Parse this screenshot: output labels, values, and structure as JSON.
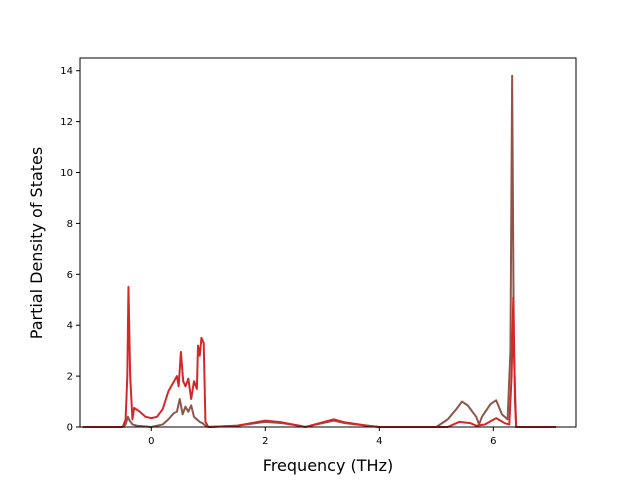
{
  "chart_data": {
    "type": "line",
    "title": "",
    "xlabel": "Frequency (THz)",
    "ylabel": "Partial Density of States",
    "xlim": [
      -1.25,
      7.45
    ],
    "ylim": [
      0,
      14.5
    ],
    "xticks": [
      0,
      2,
      4,
      6
    ],
    "yticks": [
      0,
      2,
      4,
      6,
      8,
      10,
      12,
      14
    ],
    "grid": false,
    "legend": "none",
    "series": [
      {
        "color": "#8c564b",
        "points": [
          [
            -1.2,
            0
          ],
          [
            -0.5,
            0
          ],
          [
            -0.45,
            0.1
          ],
          [
            -0.41,
            0.4
          ],
          [
            -0.38,
            0.25
          ],
          [
            -0.33,
            0.1
          ],
          [
            -0.25,
            0.05
          ],
          [
            0,
            0
          ],
          [
            0.2,
            0.1
          ],
          [
            0.3,
            0.3
          ],
          [
            0.4,
            0.55
          ],
          [
            0.45,
            0.6
          ],
          [
            0.5,
            1.1
          ],
          [
            0.55,
            0.5
          ],
          [
            0.6,
            0.8
          ],
          [
            0.65,
            0.6
          ],
          [
            0.7,
            0.85
          ],
          [
            0.75,
            0.4
          ],
          [
            0.8,
            0.3
          ],
          [
            0.85,
            0.2
          ],
          [
            0.9,
            0.15
          ],
          [
            0.95,
            0.05
          ],
          [
            1.0,
            0
          ],
          [
            1.5,
            0.05
          ],
          [
            2.0,
            0.2
          ],
          [
            2.3,
            0.15
          ],
          [
            2.6,
            0.05
          ],
          [
            2.7,
            0
          ],
          [
            2.9,
            0.1
          ],
          [
            3.2,
            0.25
          ],
          [
            3.4,
            0.15
          ],
          [
            3.8,
            0.05
          ],
          [
            4.0,
            0
          ],
          [
            5.0,
            0
          ],
          [
            5.2,
            0.3
          ],
          [
            5.35,
            0.7
          ],
          [
            5.45,
            1.0
          ],
          [
            5.55,
            0.85
          ],
          [
            5.7,
            0.4
          ],
          [
            5.75,
            0.1
          ],
          [
            5.8,
            0.4
          ],
          [
            5.95,
            0.9
          ],
          [
            6.05,
            1.05
          ],
          [
            6.15,
            0.5
          ],
          [
            6.25,
            0.3
          ],
          [
            6.3,
            3.0
          ],
          [
            6.33,
            13.8
          ],
          [
            6.36,
            3.0
          ],
          [
            6.4,
            0
          ],
          [
            7.1,
            0
          ]
        ]
      },
      {
        "color": "#d62728",
        "points": [
          [
            -1.2,
            0
          ],
          [
            -0.5,
            0
          ],
          [
            -0.45,
            0.3
          ],
          [
            -0.42,
            2.0
          ],
          [
            -0.4,
            5.5
          ],
          [
            -0.37,
            2.0
          ],
          [
            -0.33,
            0.3
          ],
          [
            -0.3,
            0.75
          ],
          [
            -0.2,
            0.6
          ],
          [
            -0.1,
            0.4
          ],
          [
            0,
            0.35
          ],
          [
            0.1,
            0.4
          ],
          [
            0.2,
            0.7
          ],
          [
            0.3,
            1.4
          ],
          [
            0.4,
            1.8
          ],
          [
            0.45,
            2.0
          ],
          [
            0.48,
            1.6
          ],
          [
            0.52,
            2.95
          ],
          [
            0.56,
            1.8
          ],
          [
            0.6,
            1.6
          ],
          [
            0.65,
            1.9
          ],
          [
            0.7,
            1.1
          ],
          [
            0.75,
            1.8
          ],
          [
            0.8,
            1.5
          ],
          [
            0.82,
            3.2
          ],
          [
            0.85,
            2.8
          ],
          [
            0.88,
            3.5
          ],
          [
            0.92,
            3.3
          ],
          [
            0.95,
            0.2
          ],
          [
            1.0,
            0
          ],
          [
            1.5,
            0.05
          ],
          [
            2.0,
            0.25
          ],
          [
            2.3,
            0.18
          ],
          [
            2.6,
            0.05
          ],
          [
            2.7,
            0
          ],
          [
            2.9,
            0.12
          ],
          [
            3.2,
            0.3
          ],
          [
            3.4,
            0.18
          ],
          [
            3.8,
            0.05
          ],
          [
            4.0,
            0
          ],
          [
            5.2,
            0
          ],
          [
            5.4,
            0.2
          ],
          [
            5.6,
            0.15
          ],
          [
            5.7,
            0.05
          ],
          [
            5.85,
            0.1
          ],
          [
            6.05,
            0.35
          ],
          [
            6.2,
            0.15
          ],
          [
            6.28,
            0.1
          ],
          [
            6.32,
            2.0
          ],
          [
            6.35,
            5.1
          ],
          [
            6.38,
            1.0
          ],
          [
            6.4,
            0
          ],
          [
            7.1,
            0
          ]
        ]
      }
    ]
  }
}
